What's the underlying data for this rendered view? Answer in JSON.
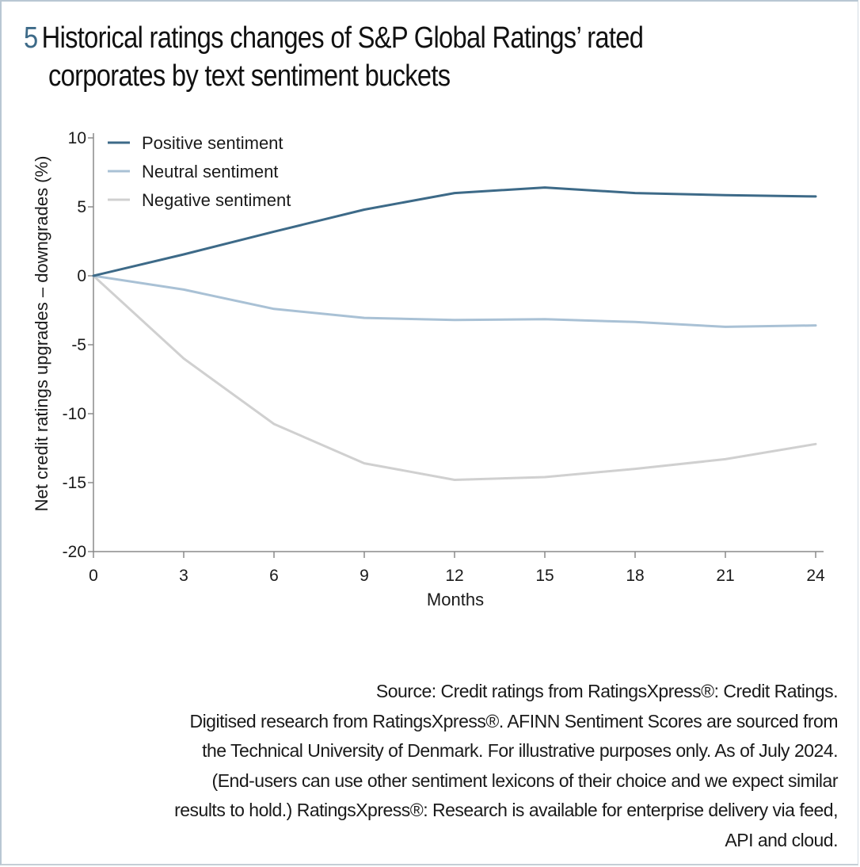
{
  "figure": {
    "number": "5",
    "title_line1": "Historical ratings changes of S&P Global Ratings’ rated",
    "title_line2": "corporates by text sentiment buckets"
  },
  "chart_data": {
    "type": "line",
    "title": "Historical ratings changes of S&P Global Ratings’ rated corporates by text sentiment buckets",
    "xlabel": "Months",
    "ylabel": "Net credit ratings upgrades – downgrades (%)",
    "x": [
      0,
      3,
      6,
      9,
      12,
      15,
      18,
      21,
      24
    ],
    "x_ticks": [
      "0",
      "3",
      "6",
      "9",
      "12",
      "15",
      "18",
      "21",
      "24"
    ],
    "y_ticks": [
      "10",
      "5",
      "0",
      "-5",
      "-10",
      "-15",
      "-20"
    ],
    "y_tick_values": [
      10,
      5,
      0,
      -5,
      -10,
      -15,
      -20
    ],
    "xlim": [
      0,
      24.3
    ],
    "ylim": [
      -20,
      10
    ],
    "grid": false,
    "legend_position": "top-left",
    "series": [
      {
        "name": "Positive sentiment",
        "color": "#3d6a88",
        "values": [
          0,
          1.55,
          3.2,
          4.8,
          6.0,
          6.4,
          6.0,
          5.85,
          5.75
        ]
      },
      {
        "name": "Neutral sentiment",
        "color": "#a9c1d5",
        "values": [
          0,
          -1.0,
          -2.4,
          -3.05,
          -3.2,
          -3.15,
          -3.35,
          -3.7,
          -3.6
        ]
      },
      {
        "name": "Negative sentiment",
        "color": "#d0d0d0",
        "values": [
          0,
          -6.0,
          -10.75,
          -13.6,
          -14.8,
          -14.6,
          -14.0,
          -13.3,
          -12.2
        ]
      }
    ]
  },
  "source_lines": [
    "Source: Credit ratings from RatingsXpress®: Credit Ratings.",
    "Digitised research from RatingsXpress®. AFINN Sentiment Scores are sourced from",
    "the Technical University of Denmark. For illustrative purposes only. As of July 2024.",
    "(End-users can use other sentiment lexicons of their choice and we expect similar",
    "results to hold.) RatingsXpress®: Research is available for enterprise delivery via feed,",
    "API and cloud."
  ]
}
